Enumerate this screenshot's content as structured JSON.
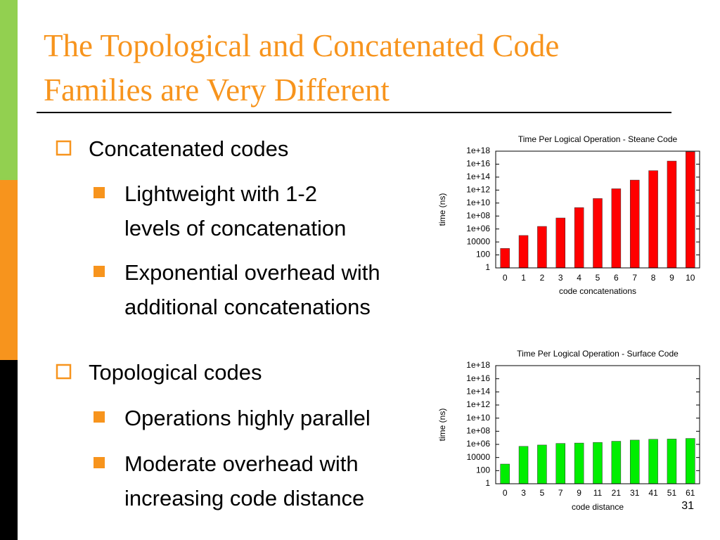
{
  "slide": {
    "title": [
      "The Topological and Concatenated Code",
      "Families are Very Different"
    ],
    "bullets": [
      {
        "text": "Concatenated codes",
        "items": [
          {
            "lines": [
              "Lightweight with 1-2",
              "levels of concatenation"
            ]
          },
          {
            "lines": [
              "Exponential overhead with",
              "additional concatenations"
            ]
          }
        ]
      },
      {
        "text": "Topological codes",
        "items": [
          {
            "lines": [
              "Operations highly parallel"
            ]
          },
          {
            "lines": [
              "Moderate overhead with",
              "increasing code distance"
            ]
          }
        ]
      }
    ],
    "page_number": "31"
  },
  "chart_data": [
    {
      "type": "bar",
      "title": "Time Per Logical Operation - Steane Code",
      "x_label": "code concatenations",
      "y_label": "time (ns)",
      "categories": [
        "0",
        "1",
        "2",
        "3",
        "4",
        "5",
        "6",
        "7",
        "8",
        "9",
        "10"
      ],
      "values": [
        1000,
        100000,
        2500000,
        50000000,
        2000000000,
        50000000000,
        1600000000000,
        35000000000000,
        1000000000000000,
        30000000000000000,
        800000000000000000
      ],
      "color": "#ff0000",
      "y_scale": "log",
      "ylim": [
        1,
        1e+18
      ],
      "yticks": [
        1,
        100,
        10000,
        {
          "value": 1000000.0,
          "label": "1e+06"
        },
        {
          "value": 100000000.0,
          "label": "1e+08"
        },
        {
          "value": 10000000000.0,
          "label": "1e+10"
        },
        {
          "value": 1000000000000.0,
          "label": "1e+12"
        },
        {
          "value": 100000000000000.0,
          "label": "1e+14"
        },
        {
          "value": 1e+16,
          "label": "1e+16"
        },
        {
          "value": 1e+18,
          "label": "1e+18"
        }
      ]
    },
    {
      "type": "bar",
      "title": "Time Per Logical Operation - Surface Code",
      "x_label": "code distance",
      "y_label": "time (ns)",
      "categories": [
        "0",
        "3",
        "5",
        "7",
        "9",
        "11",
        "21",
        "31",
        "41",
        "51",
        "61"
      ],
      "values": [
        1000,
        500000,
        800000,
        1400000,
        1600000,
        2000000,
        3000000,
        4500000,
        6000000,
        6500000,
        8000000
      ],
      "color": "#00ee00",
      "y_scale": "log",
      "ylim": [
        1,
        1e+18
      ],
      "yticks": [
        1,
        100,
        10000,
        {
          "value": 1000000.0,
          "label": "1e+06"
        },
        {
          "value": 100000000.0,
          "label": "1e+08"
        },
        {
          "value": 10000000000.0,
          "label": "1e+10"
        },
        {
          "value": 1000000000000.0,
          "label": "1e+12"
        },
        {
          "value": 100000000000000.0,
          "label": "1e+14"
        },
        {
          "value": 1e+16,
          "label": "1e+16"
        },
        {
          "value": 1e+18,
          "label": "1e+18"
        }
      ]
    }
  ]
}
